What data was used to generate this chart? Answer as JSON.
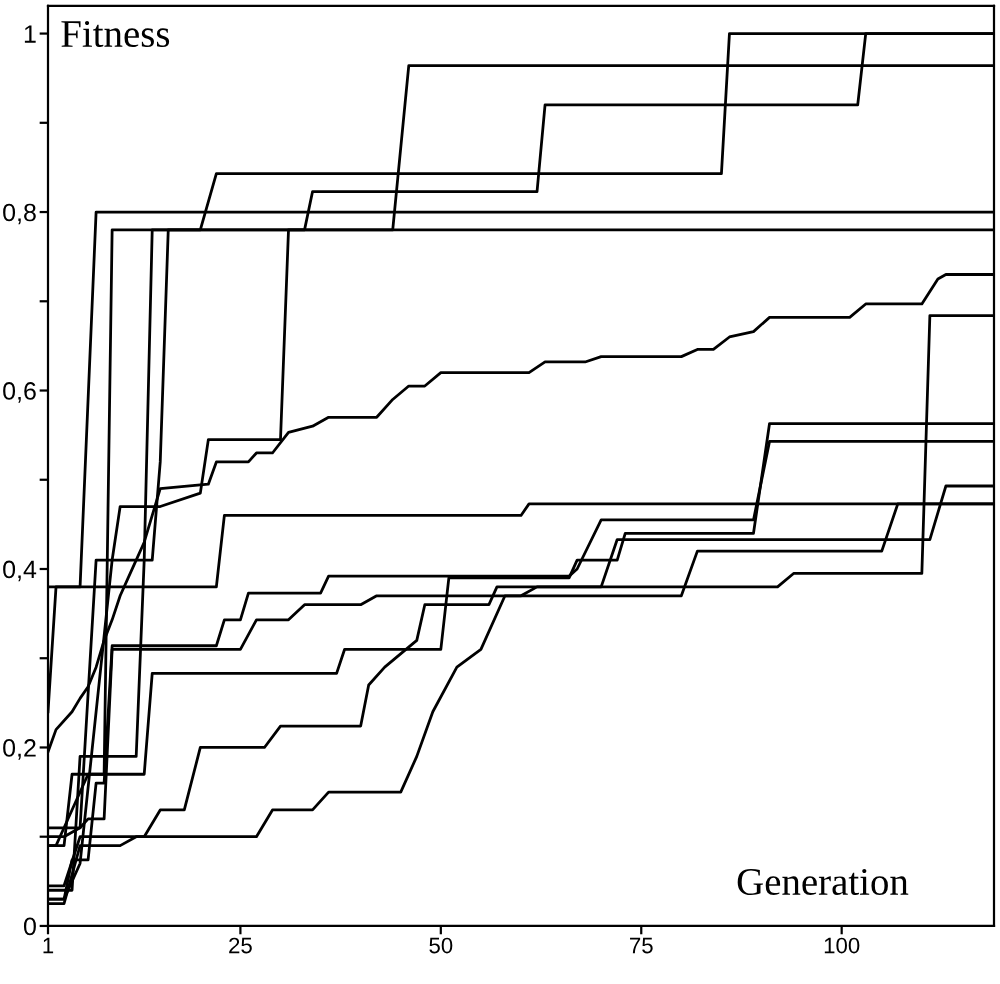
{
  "chart_data": {
    "type": "line",
    "xlabel": "Generation",
    "ylabel": "Fitness",
    "xlim": [
      1,
      119
    ],
    "ylim": [
      0,
      1.031
    ],
    "xticks": [
      1,
      25,
      50,
      75,
      100
    ],
    "yticks": [
      {
        "value": 0,
        "label": "0"
      },
      {
        "value": 0.1,
        "label": null
      },
      {
        "value": 0.2,
        "label": "0,2"
      },
      {
        "value": 0.3,
        "label": null
      },
      {
        "value": 0.4,
        "label": "0,4"
      },
      {
        "value": 0.5,
        "label": null
      },
      {
        "value": 0.6,
        "label": "0,6"
      },
      {
        "value": 0.7,
        "label": null
      },
      {
        "value": 0.8,
        "label": "0,8"
      },
      {
        "value": 0.9,
        "label": null
      },
      {
        "value": 1,
        "label": "1"
      }
    ],
    "grid": false,
    "legend": false,
    "marker": "none",
    "line_style": "solid",
    "series": [
      {
        "color": "#000000",
        "x": [
          1,
          5,
          7,
          119
        ],
        "values": [
          0.38,
          0.38,
          0.8,
          0.8
        ]
      },
      {
        "color": "#000000",
        "x": [
          1,
          3,
          4,
          8,
          9,
          119
        ],
        "values": [
          0.09,
          0.09,
          0.17,
          0.17,
          0.78,
          0.78
        ]
      },
      {
        "color": "#000000",
        "x": [
          1,
          4,
          5,
          12,
          13,
          14,
          20,
          22,
          85,
          86,
          119
        ],
        "values": [
          0.04,
          0.04,
          0.19,
          0.19,
          0.41,
          0.78,
          0.78,
          0.843,
          0.843,
          1.0,
          1.0
        ]
      },
      {
        "color": "#000000",
        "x": [
          1,
          3,
          5,
          7,
          14,
          15,
          16,
          44,
          46,
          119
        ],
        "values": [
          0.1,
          0.1,
          0.11,
          0.41,
          0.41,
          0.52,
          0.78,
          0.78,
          0.964,
          0.964
        ]
      },
      {
        "color": "#000000",
        "x": [
          1,
          3,
          5,
          9,
          10,
          15,
          20,
          21,
          30,
          31,
          33,
          34,
          62,
          63,
          102,
          103,
          119
        ],
        "values": [
          0.03,
          0.03,
          0.07,
          0.41,
          0.47,
          0.47,
          0.485,
          0.545,
          0.545,
          0.78,
          0.78,
          0.823,
          0.823,
          0.92,
          0.92,
          1.0,
          1.0
        ]
      },
      {
        "color": "#000000",
        "x": [
          1,
          2,
          22,
          23,
          60,
          61,
          119
        ],
        "values": [
          0.24,
          0.38,
          0.38,
          0.46,
          0.46,
          0.473,
          0.473
        ]
      },
      {
        "color": "#000000",
        "x": [
          1,
          3,
          6,
          13,
          14,
          37,
          38,
          50,
          51,
          66,
          67,
          72,
          73,
          89,
          91,
          119
        ],
        "values": [
          0.11,
          0.11,
          0.17,
          0.17,
          0.283,
          0.283,
          0.31,
          0.31,
          0.39,
          0.39,
          0.41,
          0.41,
          0.44,
          0.44,
          0.563,
          0.563
        ]
      },
      {
        "color": "#000000",
        "x": [
          1,
          3,
          4,
          6,
          7,
          8,
          9,
          22,
          23,
          25,
          26,
          35,
          36,
          66,
          67,
          70,
          89,
          91,
          119
        ],
        "values": [
          0.03,
          0.03,
          0.074,
          0.074,
          0.16,
          0.16,
          0.314,
          0.314,
          0.343,
          0.343,
          0.373,
          0.373,
          0.392,
          0.392,
          0.4,
          0.455,
          0.455,
          0.543,
          0.543
        ]
      },
      {
        "color": "#000000",
        "x": [
          1,
          3,
          5,
          13,
          15,
          18,
          20,
          28,
          30,
          40,
          41,
          43,
          47,
          48,
          56,
          57,
          70,
          72,
          111,
          113,
          119
        ],
        "values": [
          0.045,
          0.045,
          0.1,
          0.1,
          0.13,
          0.13,
          0.2,
          0.2,
          0.224,
          0.224,
          0.27,
          0.29,
          0.32,
          0.36,
          0.36,
          0.38,
          0.38,
          0.433,
          0.433,
          0.493,
          0.493
        ]
      },
      {
        "color": "#000000",
        "x": [
          1,
          3,
          5,
          10,
          12,
          27,
          29,
          34,
          36,
          45,
          47,
          49,
          52,
          55,
          58,
          80,
          82,
          105,
          107,
          119
        ],
        "values": [
          0.025,
          0.025,
          0.09,
          0.09,
          0.1,
          0.1,
          0.13,
          0.13,
          0.15,
          0.15,
          0.19,
          0.24,
          0.29,
          0.31,
          0.37,
          0.37,
          0.42,
          0.42,
          0.473,
          0.473
        ]
      },
      {
        "color": "#000000",
        "x": [
          1,
          2,
          3,
          5,
          6,
          8,
          9,
          25,
          27,
          31,
          33,
          40,
          42,
          60,
          62,
          92,
          94,
          110,
          111,
          119
        ],
        "values": [
          0.09,
          0.09,
          0.11,
          0.11,
          0.12,
          0.12,
          0.31,
          0.31,
          0.343,
          0.343,
          0.36,
          0.36,
          0.37,
          0.37,
          0.38,
          0.38,
          0.395,
          0.395,
          0.684,
          0.684
        ]
      },
      {
        "color": "#000000",
        "x": [
          1,
          2,
          4,
          5,
          6,
          7,
          8,
          9,
          10,
          11,
          12,
          13,
          14,
          15,
          21,
          22,
          26,
          27,
          29,
          31,
          34,
          36,
          42,
          44,
          46,
          48,
          50,
          61,
          63,
          68,
          70,
          80,
          82,
          84,
          86,
          89,
          91,
          101,
          103,
          110,
          112,
          113,
          119
        ],
        "values": [
          0.195,
          0.22,
          0.24,
          0.255,
          0.268,
          0.29,
          0.32,
          0.343,
          0.37,
          0.39,
          0.41,
          0.43,
          0.46,
          0.49,
          0.495,
          0.52,
          0.52,
          0.53,
          0.53,
          0.553,
          0.56,
          0.57,
          0.57,
          0.59,
          0.605,
          0.605,
          0.62,
          0.62,
          0.632,
          0.632,
          0.638,
          0.638,
          0.646,
          0.646,
          0.66,
          0.666,
          0.682,
          0.682,
          0.697,
          0.697,
          0.725,
          0.73,
          0.73
        ]
      }
    ]
  }
}
